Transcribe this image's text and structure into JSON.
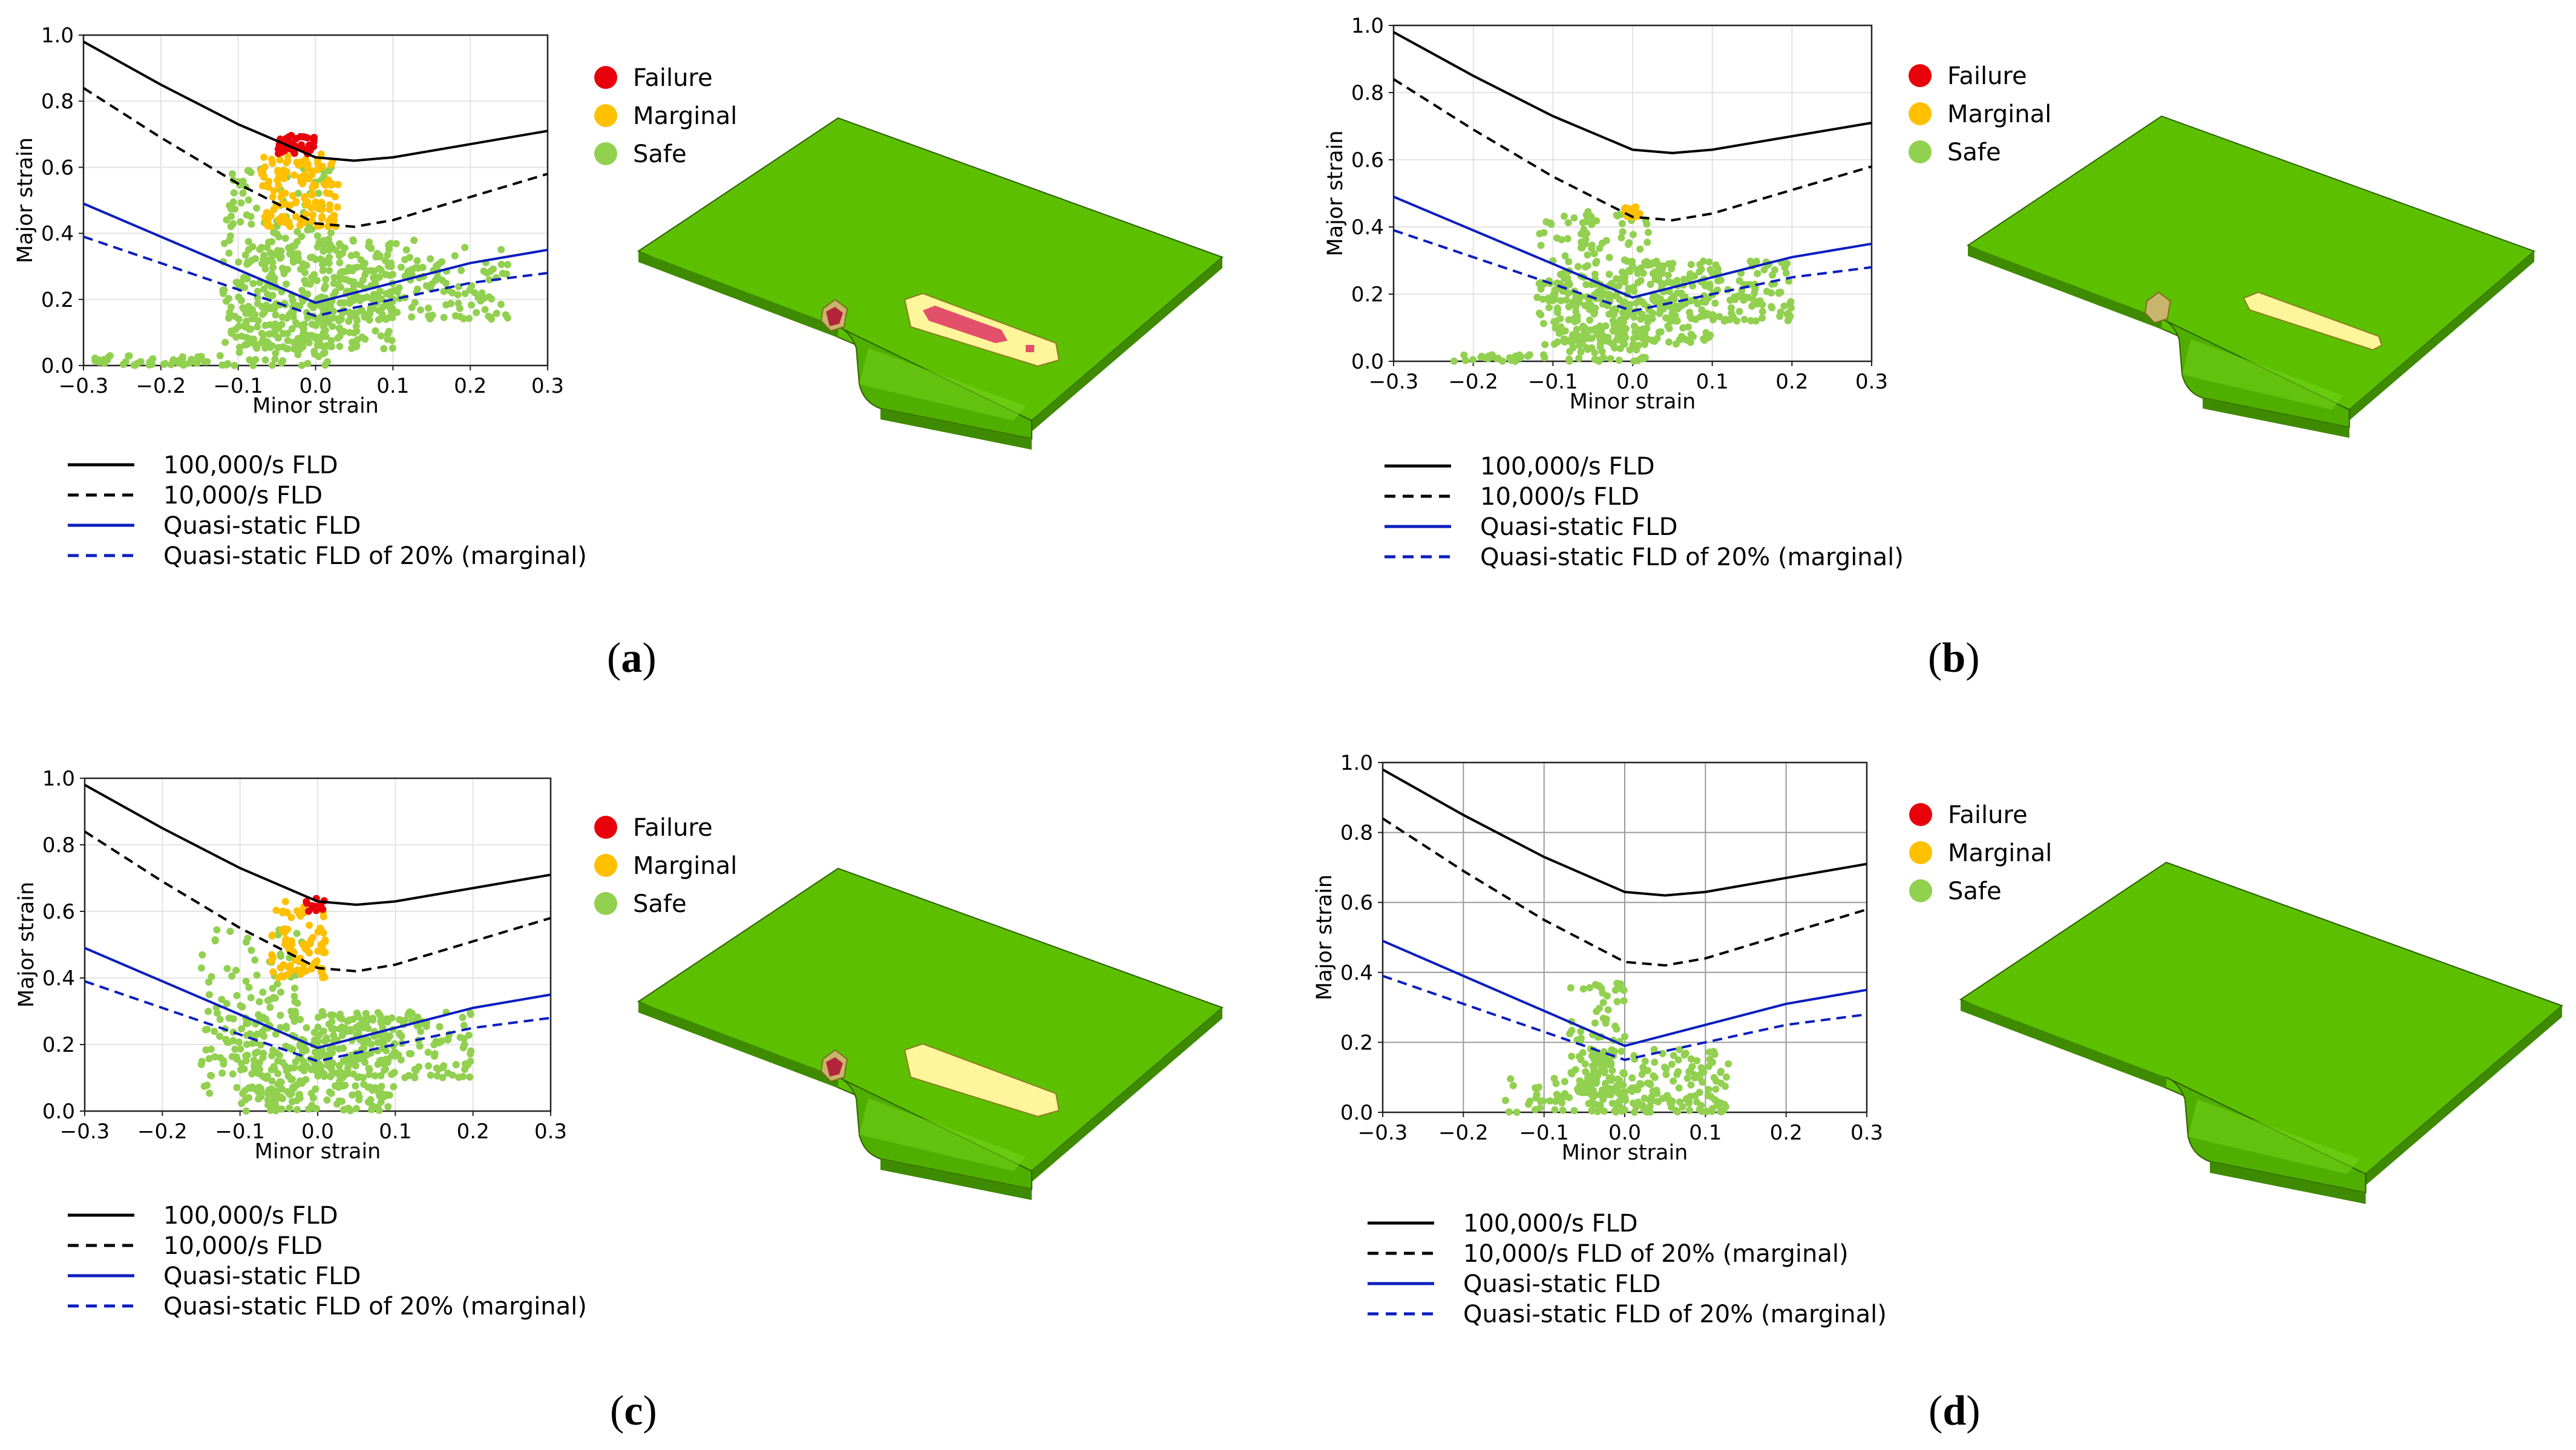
{
  "figure": {
    "panels": [
      {
        "label": "a"
      },
      {
        "label": "b"
      },
      {
        "label": "c"
      },
      {
        "label": "d"
      }
    ]
  },
  "colors": {
    "failure": "#e8000b",
    "marginal": "#ffc000",
    "safe": "#92d050",
    "fld_black": "#000000",
    "fld_blue": "#0a1ebe",
    "part_green": "#5cc000",
    "part_green_dark": "#3e8a00",
    "marginal_zone": "#fff59a",
    "failure_zone": "#e2506a"
  },
  "chart_data": [
    {
      "type": "scatter",
      "panel": "a",
      "xlabel": "Minor strain",
      "ylabel": "Major strain",
      "xlim": [
        -0.3,
        0.3
      ],
      "ylim": [
        0.0,
        1.0
      ],
      "xticks": [
        "−0.3",
        "−0.2",
        "−0.1",
        "0.0",
        "0.1",
        "0.2",
        "0.3"
      ],
      "yticks": [
        "0.0",
        "0.2",
        "0.4",
        "0.6",
        "0.8",
        "1.0"
      ],
      "grid": true,
      "point_legend": [
        "Failure",
        "Marginal",
        "Safe"
      ],
      "line_legend": [
        "100,000/s FLD",
        "10,000/s FLD",
        "Quasi-static FLD",
        "Quasi-static FLD of 20% (marginal)"
      ],
      "lines": [
        {
          "name": "100,000/s FLD",
          "style": "solid",
          "color": "#000000",
          "x": [
            -0.3,
            -0.2,
            -0.1,
            0.0,
            0.05,
            0.1,
            0.2,
            0.3
          ],
          "y": [
            0.98,
            0.85,
            0.73,
            0.63,
            0.62,
            0.63,
            0.67,
            0.71
          ]
        },
        {
          "name": "10,000/s FLD",
          "style": "dashed",
          "color": "#000000",
          "x": [
            -0.3,
            -0.2,
            -0.1,
            0.0,
            0.05,
            0.1,
            0.2,
            0.3
          ],
          "y": [
            0.84,
            0.69,
            0.55,
            0.43,
            0.42,
            0.44,
            0.51,
            0.58
          ]
        },
        {
          "name": "Quasi-static FLD",
          "style": "solid",
          "color": "#0a1ebe",
          "x": [
            -0.3,
            0.0,
            0.2,
            0.3
          ],
          "y": [
            0.49,
            0.19,
            0.31,
            0.35
          ]
        },
        {
          "name": "Quasi-static FLD of 20% (marginal)",
          "style": "dashed",
          "color": "#0a1ebe",
          "x": [
            -0.3,
            0.0,
            0.2,
            0.3
          ],
          "y": [
            0.39,
            0.15,
            0.25,
            0.28
          ]
        }
      ],
      "clusters": {
        "safe": [
          {
            "x": [
              -0.29,
              -0.12
            ],
            "y": [
              0.0,
              0.03
            ],
            "n": 45
          },
          {
            "x": [
              -0.12,
              0.02
            ],
            "y": [
              0.0,
              0.6
            ],
            "n": 220
          },
          {
            "x": [
              -0.1,
              0.1
            ],
            "y": [
              0.05,
              0.38
            ],
            "n": 260
          },
          {
            "x": [
              0.0,
              0.25
            ],
            "y": [
              0.14,
              0.38
            ],
            "n": 190
          }
        ],
        "marginal": [
          {
            "x": [
              -0.07,
              0.03
            ],
            "y": [
              0.42,
              0.64
            ],
            "n": 140
          }
        ],
        "failure": [
          {
            "x": [
              -0.05,
              0.0
            ],
            "y": [
              0.64,
              0.7
            ],
            "n": 40
          }
        ]
      },
      "part": {
        "failure_regions": 3,
        "marginal_regions": 2
      }
    },
    {
      "type": "scatter",
      "panel": "b",
      "xlabel": "Minor strain",
      "ylabel": "Major strain",
      "xlim": [
        -0.3,
        0.3
      ],
      "ylim": [
        0.0,
        1.0
      ],
      "xticks": [
        "−0.3",
        "−0.2",
        "−0.1",
        "0.0",
        "0.1",
        "0.2",
        "0.3"
      ],
      "yticks": [
        "0.0",
        "0.2",
        "0.4",
        "0.6",
        "0.8",
        "1.0"
      ],
      "grid": true,
      "point_legend": [
        "Failure",
        "Marginal",
        "Safe"
      ],
      "line_legend": [
        "100,000/s FLD",
        "10,000/s FLD",
        "Quasi-static FLD",
        "Quasi-static FLD of 20% (marginal)"
      ],
      "lines": [
        {
          "name": "100,000/s FLD",
          "style": "solid",
          "color": "#000000",
          "x": [
            -0.3,
            -0.2,
            -0.1,
            0.0,
            0.05,
            0.1,
            0.2,
            0.3
          ],
          "y": [
            0.98,
            0.85,
            0.73,
            0.63,
            0.62,
            0.63,
            0.67,
            0.71
          ]
        },
        {
          "name": "10,000/s FLD",
          "style": "dashed",
          "color": "#000000",
          "x": [
            -0.3,
            -0.2,
            -0.1,
            0.0,
            0.05,
            0.1,
            0.2,
            0.3
          ],
          "y": [
            0.84,
            0.69,
            0.55,
            0.43,
            0.42,
            0.44,
            0.51,
            0.58
          ]
        },
        {
          "name": "Quasi-static FLD",
          "style": "solid",
          "color": "#0a1ebe",
          "x": [
            -0.3,
            0.0,
            0.2,
            0.3
          ],
          "y": [
            0.49,
            0.19,
            0.31,
            0.35
          ]
        },
        {
          "name": "Quasi-static FLD of 20% (marginal)",
          "style": "dashed",
          "color": "#0a1ebe",
          "x": [
            -0.3,
            0.0,
            0.2,
            0.3
          ],
          "y": [
            0.39,
            0.15,
            0.25,
            0.28
          ]
        }
      ],
      "clusters": {
        "safe": [
          {
            "x": [
              -0.23,
              -0.12
            ],
            "y": [
              0.0,
              0.02
            ],
            "n": 25
          },
          {
            "x": [
              -0.12,
              0.02
            ],
            "y": [
              0.0,
              0.45
            ],
            "n": 200
          },
          {
            "x": [
              -0.1,
              0.1
            ],
            "y": [
              0.05,
              0.3
            ],
            "n": 220
          },
          {
            "x": [
              0.0,
              0.2
            ],
            "y": [
              0.12,
              0.3
            ],
            "n": 150
          }
        ],
        "marginal": [
          {
            "x": [
              -0.01,
              0.01
            ],
            "y": [
              0.43,
              0.46
            ],
            "n": 25
          }
        ],
        "failure": []
      },
      "part": {
        "failure_regions": 0,
        "marginal_regions": 2
      }
    },
    {
      "type": "scatter",
      "panel": "c",
      "xlabel": "Minor strain",
      "ylabel": "Major strain",
      "xlim": [
        -0.3,
        0.3
      ],
      "ylim": [
        0.0,
        1.0
      ],
      "xticks": [
        "−0.3",
        "−0.2",
        "−0.1",
        "0.0",
        "0.1",
        "0.2",
        "0.3"
      ],
      "yticks": [
        "0.0",
        "0.2",
        "0.4",
        "0.6",
        "0.8",
        "1.0"
      ],
      "grid": true,
      "point_legend": [
        "Failure",
        "Marginal",
        "Safe"
      ],
      "line_legend": [
        "100,000/s FLD",
        "10,000/s FLD",
        "Quasi-static FLD",
        "Quasi-static FLD of 20% (marginal)"
      ],
      "lines": [
        {
          "name": "100,000/s FLD",
          "style": "solid",
          "color": "#000000",
          "x": [
            -0.3,
            -0.2,
            -0.1,
            0.0,
            0.05,
            0.1,
            0.2,
            0.3
          ],
          "y": [
            0.98,
            0.85,
            0.73,
            0.63,
            0.62,
            0.63,
            0.67,
            0.71
          ]
        },
        {
          "name": "10,000/s FLD",
          "style": "dashed",
          "color": "#000000",
          "x": [
            -0.3,
            -0.2,
            -0.1,
            0.0,
            0.05,
            0.1,
            0.2,
            0.3
          ],
          "y": [
            0.84,
            0.69,
            0.55,
            0.43,
            0.42,
            0.44,
            0.51,
            0.58
          ]
        },
        {
          "name": "Quasi-static FLD",
          "style": "solid",
          "color": "#0a1ebe",
          "x": [
            -0.3,
            0.0,
            0.2,
            0.3
          ],
          "y": [
            0.49,
            0.19,
            0.31,
            0.35
          ]
        },
        {
          "name": "Quasi-static FLD of 20% (marginal)",
          "style": "dashed",
          "color": "#0a1ebe",
          "x": [
            -0.3,
            0.0,
            0.2,
            0.3
          ],
          "y": [
            0.39,
            0.15,
            0.25,
            0.28
          ]
        }
      ],
      "clusters": {
        "safe": [
          {
            "x": [
              -0.15,
              -0.02
            ],
            "y": [
              0.05,
              0.55
            ],
            "n": 140
          },
          {
            "x": [
              -0.1,
              0.1
            ],
            "y": [
              0.0,
              0.3
            ],
            "n": 260
          },
          {
            "x": [
              0.0,
              0.2
            ],
            "y": [
              0.1,
              0.3
            ],
            "n": 170
          }
        ],
        "marginal": [
          {
            "x": [
              -0.06,
              0.01
            ],
            "y": [
              0.4,
              0.63
            ],
            "n": 90
          }
        ],
        "failure": [
          {
            "x": [
              -0.02,
              0.01
            ],
            "y": [
              0.6,
              0.64
            ],
            "n": 12
          }
        ]
      },
      "part": {
        "failure_regions": 1,
        "marginal_regions": 2
      }
    },
    {
      "type": "scatter",
      "panel": "d",
      "xlabel": "Minor strain",
      "ylabel": "Major strain",
      "xlim": [
        -0.3,
        0.3
      ],
      "ylim": [
        0.0,
        1.0
      ],
      "xticks": [
        "−0.3",
        "−0.2",
        "−0.1",
        "0.0",
        "0.1",
        "0.2",
        "0.3"
      ],
      "yticks": [
        "0.0",
        "0.2",
        "0.4",
        "0.6",
        "0.8",
        "1.0"
      ],
      "grid": true,
      "point_legend": [
        "Failure",
        "Marginal",
        "Safe"
      ],
      "line_legend": [
        "100,000/s FLD",
        "10,000/s FLD of 20% (marginal)",
        "Quasi-static FLD",
        "Quasi-static FLD of 20% (marginal)"
      ],
      "lines": [
        {
          "name": "100,000/s FLD",
          "style": "solid",
          "color": "#000000",
          "x": [
            -0.3,
            -0.2,
            -0.1,
            0.0,
            0.05,
            0.1,
            0.2,
            0.3
          ],
          "y": [
            0.98,
            0.85,
            0.73,
            0.63,
            0.62,
            0.63,
            0.67,
            0.71
          ]
        },
        {
          "name": "10,000/s FLD of 20% (marginal)",
          "style": "dashed",
          "color": "#000000",
          "x": [
            -0.3,
            -0.2,
            -0.1,
            0.0,
            0.05,
            0.1,
            0.2,
            0.3
          ],
          "y": [
            0.84,
            0.69,
            0.55,
            0.43,
            0.42,
            0.44,
            0.51,
            0.58
          ]
        },
        {
          "name": "Quasi-static FLD",
          "style": "solid",
          "color": "#0a1ebe",
          "x": [
            -0.3,
            0.0,
            0.2,
            0.3
          ],
          "y": [
            0.49,
            0.19,
            0.31,
            0.35
          ]
        },
        {
          "name": "Quasi-static FLD of 20% (marginal)",
          "style": "dashed",
          "color": "#0a1ebe",
          "x": [
            -0.3,
            0.0,
            0.2,
            0.3
          ],
          "y": [
            0.39,
            0.15,
            0.25,
            0.28
          ]
        }
      ],
      "clusters": {
        "safe": [
          {
            "x": [
              -0.15,
              0.0
            ],
            "y": [
              0.0,
              0.1
            ],
            "n": 60
          },
          {
            "x": [
              -0.07,
              0.0
            ],
            "y": [
              0.05,
              0.38
            ],
            "n": 90
          },
          {
            "x": [
              -0.05,
              0.13
            ],
            "y": [
              0.0,
              0.18
            ],
            "n": 170
          }
        ],
        "marginal": [],
        "failure": []
      },
      "part": {
        "failure_regions": 0,
        "marginal_regions": 0
      }
    }
  ]
}
